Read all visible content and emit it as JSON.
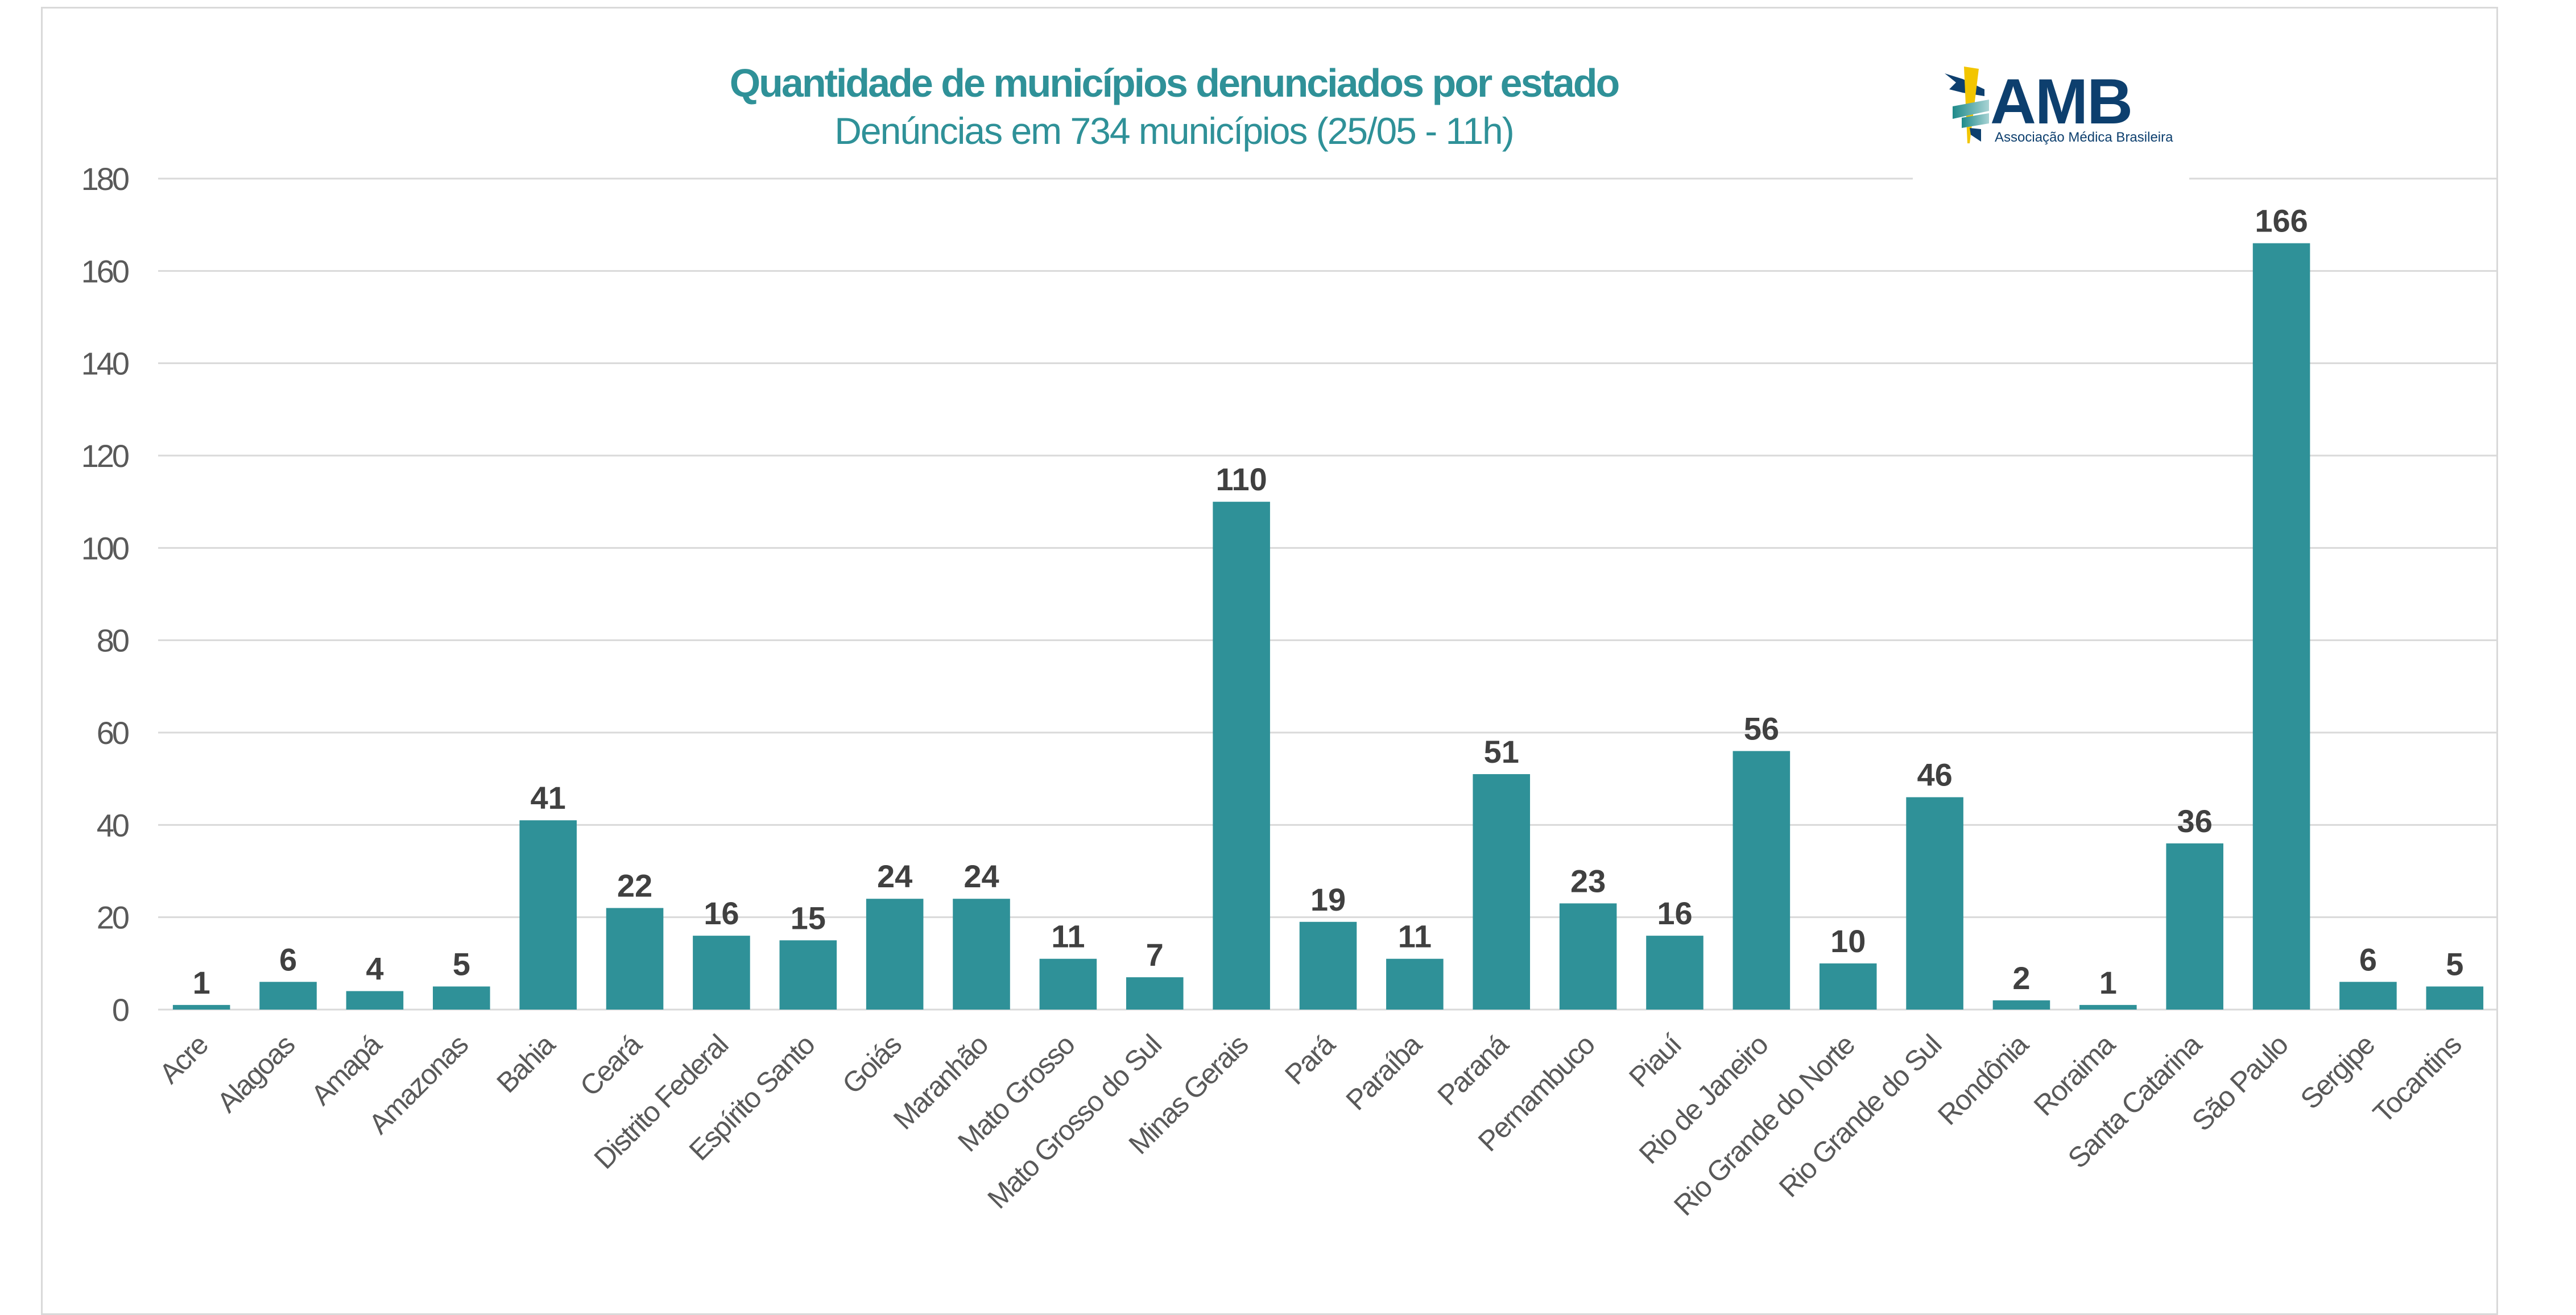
{
  "chart_data": {
    "type": "bar",
    "title": "Quantidade de municípios denunciados por estado",
    "subtitle": "Denúncias em 734 municípios (25/05 - 11h)",
    "xlabel": "",
    "ylabel": "",
    "ylim": [
      0,
      180
    ],
    "yticks": [
      0,
      20,
      40,
      60,
      80,
      100,
      120,
      140,
      160,
      180
    ],
    "grid": true,
    "legend": "none",
    "categories": [
      "Acre",
      "Alagoas",
      "Amapá",
      "Amazonas",
      "Bahia",
      "Ceará",
      "Distrito Federal",
      "Espírito Santo",
      "Goiás",
      "Maranhão",
      "Mato Grosso",
      "Mato Grosso do Sul",
      "Minas Gerais",
      "Pará",
      "Paraíba",
      "Paraná",
      "Pernambuco",
      "Piauí",
      "Rio de Janeiro",
      "Rio Grande do Norte",
      "Rio Grande do Sul",
      "Rondônia",
      "Roraima",
      "Santa Catarina",
      "São Paulo",
      "Sergipe",
      "Tocantins"
    ],
    "values": [
      1,
      6,
      4,
      5,
      41,
      22,
      16,
      15,
      24,
      24,
      11,
      7,
      110,
      19,
      11,
      51,
      23,
      16,
      56,
      10,
      46,
      2,
      1,
      36,
      166,
      6,
      5
    ],
    "data_labels": true,
    "colors": {
      "bar": "#2f9198",
      "title": "#2f9198",
      "data_label": "#404040",
      "tick_label": "#595959",
      "grid": "#d9d9d9"
    }
  },
  "logo": {
    "name": "AMB",
    "tagline": "Associação Médica Brasileira",
    "icon": "caduceus-icon",
    "colors": {
      "navy": "#0d3f6e",
      "yellow": "#f2c500",
      "teal": "#1e8a8a",
      "teal_light": "#9fcfd0"
    }
  }
}
